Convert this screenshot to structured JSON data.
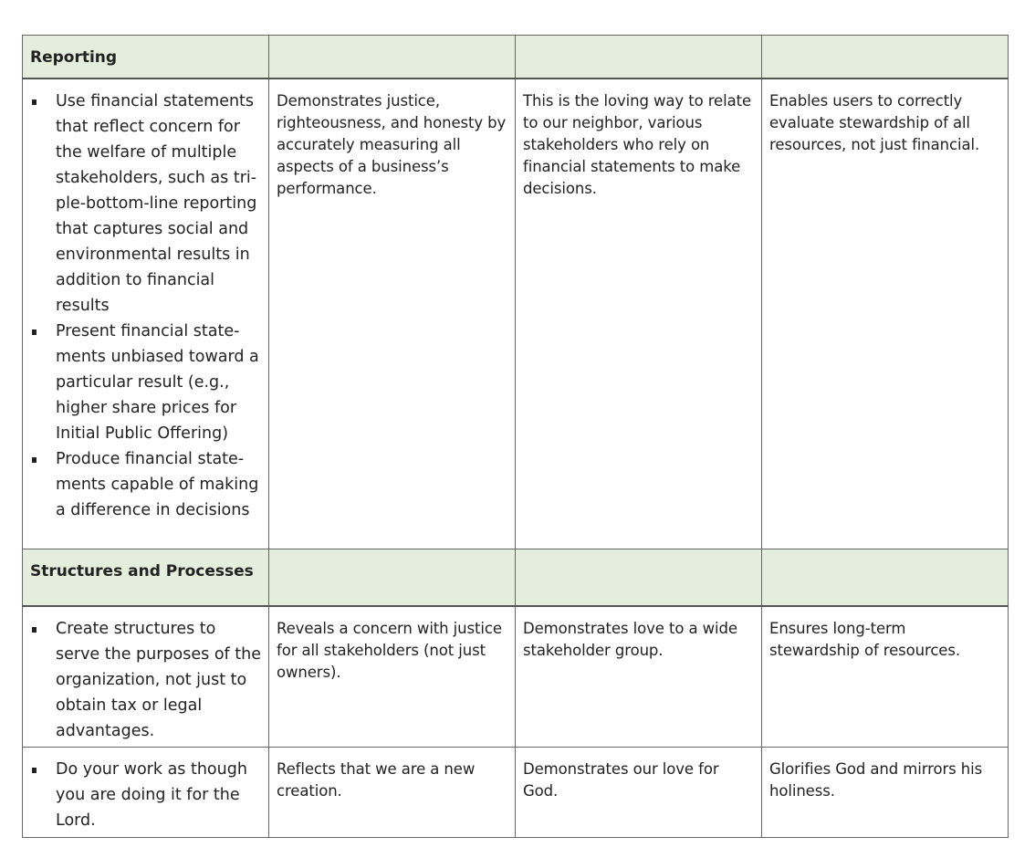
{
  "sections": [
    {
      "title": "Reporting",
      "rows": [
        {
          "bullets": [
            "Use financial statements that reflect concern for the welfare of multiple stakeholders, such as tri-ple-bottom-line reporting that captures social and environmental results in addition to financial results",
            "Present financial state-ments unbiased toward a particular result (e.g., higher share prices for Initial Public Offering)",
            "Produce financial state-ments capable of making a difference in decisions"
          ],
          "col2": "Demonstrates justice, righteousness, and honesty by accurately measuring all aspects of a business’s performance.",
          "col3": "This is the loving way to relate to our neighbor, various stakeholders who rely on financial statements to make decisions.",
          "col4": "Enables users to correctly evaluate stewardship of all resources, not just financial."
        }
      ]
    },
    {
      "title": "Structures and Processes",
      "rows": [
        {
          "bullets": [
            "Create structures to serve the purposes of the organization, not just to obtain tax or legal advantages."
          ],
          "col2": "Reveals a concern with justice for all stakeholders (not just owners).",
          "col3": "Demonstrates love to a wide stakeholder group.",
          "col4": "Ensures long-term stewardship of resources."
        },
        {
          "bullets": [
            "Do your work as though you are doing it for the Lord."
          ],
          "col2": "Reflects that we are a new creation.",
          "col3": "Demonstrates our love for God.",
          "col4": "Glorifies God and mirrors his holiness."
        }
      ]
    }
  ]
}
